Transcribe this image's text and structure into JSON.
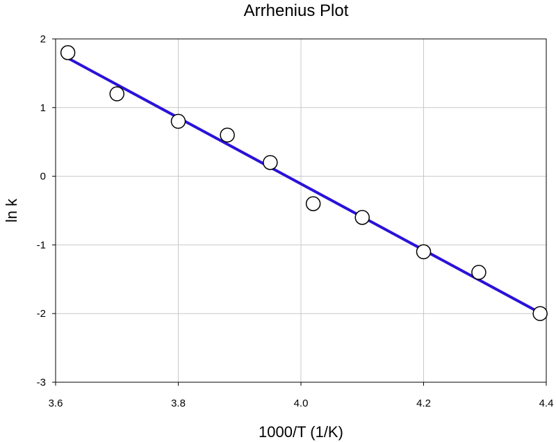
{
  "chart_data": {
    "type": "scatter",
    "title": "Arrhenius Plot",
    "xlabel": "1000/T (1/K)",
    "ylabel": "ln k",
    "xlim": [
      3.6,
      4.4
    ],
    "ylim": [
      -3,
      2
    ],
    "xticks": [
      "3.6",
      "3.8",
      "4.0",
      "4.2",
      "4.4"
    ],
    "yticks": [
      "2",
      "1",
      "0",
      "-1",
      "-2",
      "-3"
    ],
    "grid": true,
    "series": [
      {
        "type": "scatter",
        "marker": "open-circle",
        "x": [
          3.62,
          3.7,
          3.8,
          3.88,
          3.95,
          4.02,
          4.1,
          4.2,
          4.29,
          4.39
        ],
        "y": [
          1.8,
          1.2,
          0.8,
          0.6,
          0.2,
          -0.4,
          -0.6,
          -1.1,
          -1.4,
          -2.0
        ]
      },
      {
        "type": "line",
        "color": "#2b12d8",
        "x": [
          3.62,
          4.39
        ],
        "y": [
          1.72,
          -1.99
        ]
      }
    ]
  }
}
